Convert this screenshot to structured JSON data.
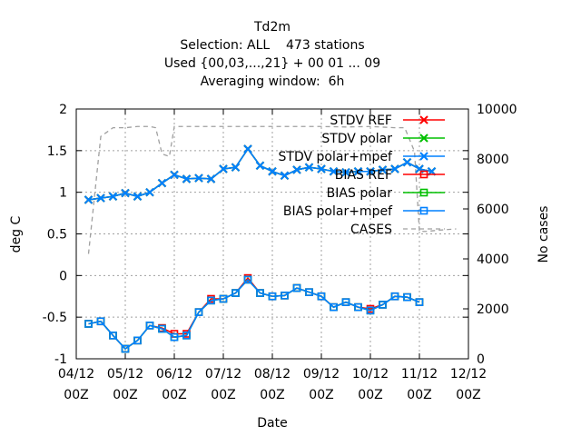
{
  "chart_data": {
    "type": "line",
    "title_lines": [
      "Td2m",
      "Selection: ALL    473 stations",
      "Used {00,03,...,21} + 00 01 ... 09",
      "Averaging window:  6h"
    ],
    "xlabel": "Date",
    "ylabel": "deg C",
    "y2label": "No cases",
    "x_ticks": [
      {
        "line1": "04/12",
        "line2": "00Z"
      },
      {
        "line1": "05/12",
        "line2": "00Z"
      },
      {
        "line1": "06/12",
        "line2": "00Z"
      },
      {
        "line1": "07/12",
        "line2": "00Z"
      },
      {
        "line1": "08/12",
        "line2": "00Z"
      },
      {
        "line1": "09/12",
        "line2": "00Z"
      },
      {
        "line1": "10/12",
        "line2": "00Z"
      },
      {
        "line1": "11/12",
        "line2": "00Z"
      },
      {
        "line1": "12/12",
        "line2": "00Z"
      }
    ],
    "x_range_days": [
      0,
      8
    ],
    "ylim": [
      -1,
      2
    ],
    "y_ticks": [
      "-1",
      "-0.5",
      "0",
      "0.5",
      "1",
      "1.5",
      "2"
    ],
    "y2lim": [
      0,
      10000
    ],
    "y2_ticks": [
      "0",
      "2000",
      "4000",
      "6000",
      "8000",
      "10000"
    ],
    "grid": true,
    "legend_position": "top-right",
    "x": [
      0.25,
      0.5,
      0.75,
      1.0,
      1.25,
      1.5,
      1.75,
      2.0,
      2.25,
      2.5,
      2.75,
      3.0,
      3.25,
      3.5,
      3.75,
      4.0,
      4.25,
      4.5,
      4.75,
      5.0,
      5.25,
      5.5,
      5.75,
      6.0,
      6.25,
      6.5,
      6.75,
      7.0,
      7.25,
      7.5
    ],
    "series": [
      {
        "name": "STDV REF",
        "color": "#ff0000",
        "marker": "x",
        "axis": "y",
        "values": [
          0.91,
          0.93,
          0.95,
          0.99,
          0.95,
          1.0,
          1.11,
          1.21,
          1.16,
          1.17,
          1.16,
          1.28,
          1.3,
          1.52,
          1.32,
          1.25,
          1.2,
          1.27,
          1.3,
          1.28,
          1.25,
          1.24,
          1.25,
          1.25,
          1.27,
          1.28,
          1.36,
          1.28,
          1.25,
          null
        ]
      },
      {
        "name": "STDV polar",
        "color": "#00c000",
        "marker": "x",
        "axis": "y",
        "values": [
          0.91,
          0.93,
          0.95,
          0.99,
          0.95,
          1.0,
          1.11,
          1.21,
          1.16,
          1.17,
          1.16,
          1.28,
          1.3,
          1.52,
          1.32,
          1.25,
          1.2,
          1.27,
          1.3,
          1.28,
          1.25,
          1.24,
          1.25,
          1.25,
          1.27,
          1.28,
          1.36,
          1.28,
          1.25,
          null
        ]
      },
      {
        "name": "STDV polar+mpef",
        "color": "#0080ff",
        "marker": "x",
        "axis": "y",
        "values": [
          0.91,
          0.93,
          0.95,
          0.99,
          0.95,
          1.0,
          1.11,
          1.21,
          1.16,
          1.17,
          1.16,
          1.28,
          1.3,
          1.52,
          1.32,
          1.25,
          1.2,
          1.27,
          1.3,
          1.28,
          1.25,
          1.24,
          1.25,
          1.25,
          1.27,
          1.28,
          1.36,
          1.28,
          1.25,
          null
        ]
      },
      {
        "name": "BIAS REF",
        "color": "#ff0000",
        "marker": "square",
        "axis": "y",
        "values": [
          -0.58,
          -0.55,
          -0.72,
          -0.88,
          -0.78,
          -0.6,
          -0.63,
          -0.7,
          -0.7,
          -0.44,
          -0.28,
          -0.28,
          -0.21,
          -0.03,
          -0.21,
          -0.25,
          -0.24,
          -0.15,
          -0.2,
          -0.25,
          -0.38,
          -0.32,
          -0.38,
          -0.4,
          -0.35,
          -0.25,
          -0.26,
          -0.32,
          null,
          null
        ]
      },
      {
        "name": "BIAS polar",
        "color": "#00c000",
        "marker": "square",
        "axis": "y",
        "values": [
          -0.58,
          -0.55,
          -0.72,
          -0.88,
          -0.78,
          -0.6,
          -0.64,
          -0.74,
          -0.72,
          -0.44,
          -0.3,
          -0.28,
          -0.21,
          -0.05,
          -0.21,
          -0.25,
          -0.24,
          -0.15,
          -0.2,
          -0.25,
          -0.38,
          -0.32,
          -0.38,
          -0.42,
          -0.35,
          -0.25,
          -0.26,
          -0.32,
          null,
          null
        ]
      },
      {
        "name": "BIAS polar+mpef",
        "color": "#0080ff",
        "marker": "square",
        "axis": "y",
        "values": [
          -0.58,
          -0.55,
          -0.72,
          -0.88,
          -0.78,
          -0.6,
          -0.64,
          -0.74,
          -0.72,
          -0.44,
          -0.3,
          -0.28,
          -0.21,
          -0.05,
          -0.21,
          -0.25,
          -0.24,
          -0.15,
          -0.2,
          -0.25,
          -0.38,
          -0.32,
          -0.38,
          -0.42,
          -0.35,
          -0.25,
          -0.26,
          -0.32,
          null,
          null
        ]
      },
      {
        "name": "CASES",
        "color": "#a0a0a0",
        "marker": "none",
        "dashed": true,
        "axis": "y2",
        "x": [
          0.25,
          0.5,
          0.75,
          1.0,
          1.25,
          1.5,
          1.62,
          1.75,
          1.9,
          2.0,
          2.1,
          2.5,
          3.0,
          3.5,
          4.0,
          4.5,
          5.0,
          5.5,
          6.0,
          6.5,
          6.7,
          6.9,
          7.0,
          7.15,
          7.4,
          7.75
        ],
        "values": [
          4200,
          8900,
          9250,
          9250,
          9300,
          9300,
          9250,
          8200,
          8100,
          9300,
          9300,
          9300,
          9300,
          9300,
          9300,
          9300,
          9300,
          9280,
          9300,
          9250,
          9250,
          8300,
          5100,
          5100,
          5150,
          5200
        ]
      }
    ],
    "legend": [
      {
        "label": "STDV REF",
        "color": "#ff0000",
        "marker": "x"
      },
      {
        "label": "STDV polar",
        "color": "#00c000",
        "marker": "x"
      },
      {
        "label": "STDV polar+mpef",
        "color": "#0080ff",
        "marker": "x"
      },
      {
        "label": "BIAS REF",
        "color": "#ff0000",
        "marker": "square"
      },
      {
        "label": "BIAS polar",
        "color": "#00c000",
        "marker": "square"
      },
      {
        "label": "BIAS polar+mpef",
        "color": "#0080ff",
        "marker": "square"
      },
      {
        "label": "CASES",
        "color": "#a0a0a0",
        "marker": "none",
        "dashed": true
      }
    ]
  }
}
